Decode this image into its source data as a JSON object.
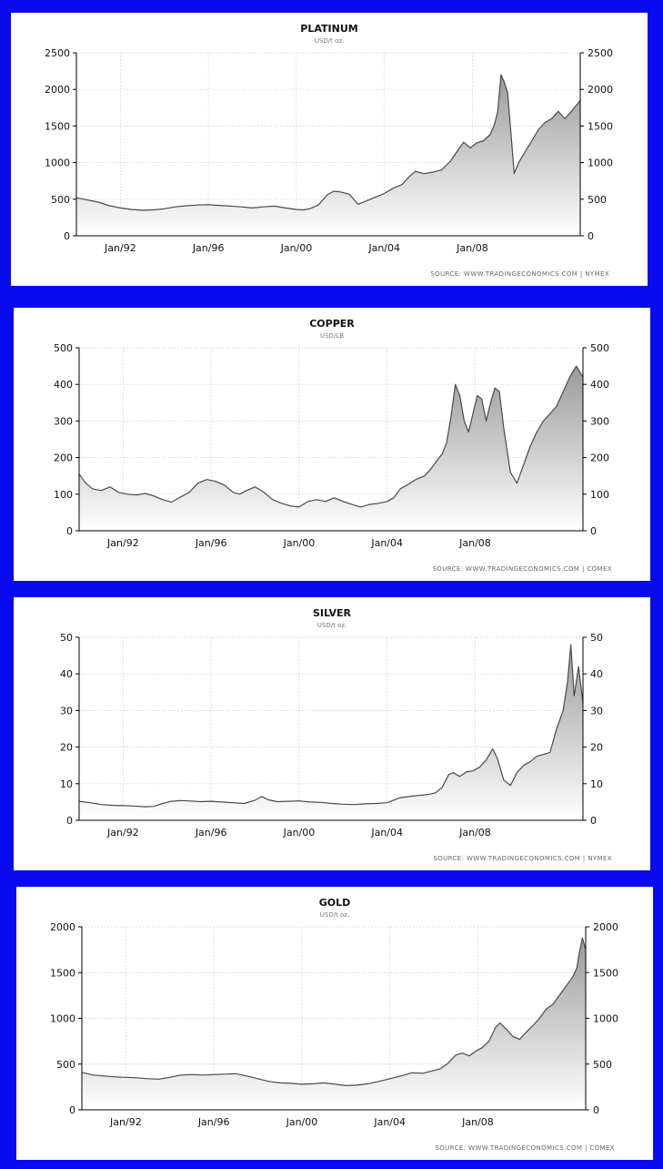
{
  "page": {
    "background": "#0a0af0"
  },
  "chart_data": [
    {
      "type": "area",
      "title": "PLATINUM",
      "subtitle": "USD/t oz.",
      "source": "SOURCE:  WWW.TRADINGECONOMICS.COM   |   NYMEX",
      "ylim": [
        0,
        2500
      ],
      "yticks": [
        0,
        500,
        1000,
        1500,
        2000,
        2500
      ],
      "xlim": [
        1989.0,
        2011.9
      ],
      "xticks": [
        {
          "value": 1991,
          "label": "Jan/92"
        },
        {
          "value": 1995,
          "label": "Jan/96"
        },
        {
          "value": 1999,
          "label": "Jan/00"
        },
        {
          "value": 2003,
          "label": "Jan/04"
        },
        {
          "value": 2007,
          "label": "Jan/08"
        }
      ],
      "grid": true,
      "series": [
        {
          "color": "#4a4a4a",
          "x": [
            1989.0,
            1989.5,
            1990.0,
            1990.5,
            1991.0,
            1991.5,
            1992.0,
            1992.5,
            1993.0,
            1993.5,
            1994.0,
            1994.5,
            1995.0,
            1995.5,
            1996.0,
            1996.5,
            1997.0,
            1997.5,
            1998.0,
            1998.5,
            1999.0,
            1999.3,
            1999.6,
            2000.0,
            2000.4,
            2000.7,
            2001.0,
            2001.4,
            2001.8,
            2002.2,
            2002.6,
            2003.0,
            2003.4,
            2003.8,
            2004.1,
            2004.4,
            2004.8,
            2005.2,
            2005.6,
            2006.0,
            2006.3,
            2006.6,
            2006.9,
            2007.2,
            2007.5,
            2007.8,
            2008.0,
            2008.15,
            2008.3,
            2008.45,
            2008.6,
            2008.75,
            2008.9,
            2009.1,
            2009.4,
            2009.7,
            2010.0,
            2010.3,
            2010.6,
            2010.9,
            2011.2,
            2011.5,
            2011.9
          ],
          "y": [
            520,
            490,
            460,
            410,
            380,
            360,
            350,
            355,
            370,
            395,
            410,
            420,
            425,
            415,
            405,
            395,
            380,
            395,
            405,
            380,
            360,
            355,
            370,
            420,
            560,
            610,
            600,
            570,
            430,
            480,
            530,
            580,
            650,
            700,
            800,
            880,
            850,
            870,
            900,
            1020,
            1150,
            1280,
            1200,
            1270,
            1300,
            1380,
            1520,
            1700,
            2200,
            2100,
            1950,
            1400,
            850,
            1000,
            1150,
            1300,
            1450,
            1550,
            1600,
            1700,
            1600,
            1700,
            1850
          ]
        }
      ]
    },
    {
      "type": "area",
      "title": "COPPER",
      "subtitle": "USD/LB",
      "source": "SOURCE:  WWW.TRADINGECONOMICS.COM   |   COMEX",
      "ylim": [
        0,
        500
      ],
      "yticks": [
        0,
        100,
        200,
        300,
        400,
        500
      ],
      "xlim": [
        1989.0,
        2011.9
      ],
      "xticks": [
        {
          "value": 1991,
          "label": "Jan/92"
        },
        {
          "value": 1995,
          "label": "Jan/96"
        },
        {
          "value": 1999,
          "label": "Jan/00"
        },
        {
          "value": 2003,
          "label": "Jan/04"
        },
        {
          "value": 2007,
          "label": "Jan/08"
        }
      ],
      "grid": true,
      "series": [
        {
          "color": "#4a4a4a",
          "x": [
            1989.0,
            1989.3,
            1989.6,
            1990.0,
            1990.4,
            1990.8,
            1991.2,
            1991.6,
            1992.0,
            1992.4,
            1992.8,
            1993.2,
            1993.6,
            1994.0,
            1994.4,
            1994.8,
            1995.2,
            1995.6,
            1996.0,
            1996.3,
            1996.6,
            1997.0,
            1997.4,
            1997.8,
            1998.2,
            1998.6,
            1999.0,
            1999.4,
            1999.8,
            2000.2,
            2000.6,
            2001.0,
            2001.4,
            2001.8,
            2002.2,
            2002.6,
            2003.0,
            2003.3,
            2003.6,
            2003.9,
            2004.3,
            2004.7,
            2005.0,
            2005.3,
            2005.5,
            2005.7,
            2005.9,
            2006.1,
            2006.3,
            2006.5,
            2006.7,
            2006.9,
            2007.1,
            2007.3,
            2007.5,
            2007.7,
            2007.9,
            2008.1,
            2008.3,
            2008.6,
            2008.9,
            2009.2,
            2009.5,
            2009.8,
            2010.1,
            2010.4,
            2010.7,
            2011.0,
            2011.3,
            2011.6,
            2011.9
          ],
          "y": [
            155,
            130,
            115,
            110,
            120,
            105,
            100,
            98,
            102,
            95,
            85,
            78,
            92,
            105,
            130,
            140,
            135,
            125,
            105,
            100,
            110,
            120,
            105,
            85,
            75,
            68,
            65,
            80,
            85,
            80,
            90,
            80,
            72,
            65,
            72,
            75,
            80,
            90,
            115,
            125,
            140,
            150,
            170,
            195,
            210,
            240,
            310,
            400,
            370,
            300,
            270,
            320,
            370,
            360,
            300,
            350,
            390,
            380,
            280,
            160,
            130,
            180,
            230,
            270,
            300,
            320,
            340,
            380,
            420,
            450,
            420
          ]
        }
      ]
    },
    {
      "type": "area",
      "title": "SILVER",
      "subtitle": "USD/t oz.",
      "source": "SOURCE:  WWW.TRADINGECONOMICS.COM   |   NYMEX",
      "ylim": [
        0,
        50
      ],
      "yticks": [
        0,
        10,
        20,
        30,
        40,
        50
      ],
      "xlim": [
        1989.0,
        2011.9
      ],
      "xticks": [
        {
          "value": 1991,
          "label": "Jan/92"
        },
        {
          "value": 1995,
          "label": "Jan/96"
        },
        {
          "value": 1999,
          "label": "Jan/00"
        },
        {
          "value": 2003,
          "label": "Jan/04"
        },
        {
          "value": 2007,
          "label": "Jan/08"
        }
      ],
      "grid": true,
      "series": [
        {
          "color": "#4a4a4a",
          "x": [
            1989.0,
            1989.5,
            1990.0,
            1990.5,
            1991.0,
            1991.5,
            1992.0,
            1992.4,
            1992.8,
            1993.2,
            1993.6,
            1994.0,
            1994.5,
            1995.0,
            1995.5,
            1996.0,
            1996.5,
            1997.0,
            1997.3,
            1997.6,
            1998.0,
            1998.5,
            1999.0,
            1999.5,
            2000.0,
            2000.5,
            2001.0,
            2001.5,
            2002.0,
            2002.5,
            2003.0,
            2003.3,
            2003.6,
            2004.0,
            2004.4,
            2004.8,
            2005.2,
            2005.5,
            2005.8,
            2006.0,
            2006.3,
            2006.6,
            2006.9,
            2007.2,
            2007.5,
            2007.8,
            2008.0,
            2008.3,
            2008.6,
            2008.9,
            2009.2,
            2009.5,
            2009.8,
            2010.1,
            2010.4,
            2010.7,
            2011.0,
            2011.2,
            2011.35,
            2011.5,
            2011.7,
            2011.9
          ],
          "y": [
            5.2,
            4.8,
            4.3,
            4.1,
            4.0,
            3.9,
            3.7,
            3.8,
            4.6,
            5.2,
            5.4,
            5.3,
            5.1,
            5.2,
            5.0,
            4.8,
            4.6,
            5.5,
            6.5,
            5.6,
            5.1,
            5.2,
            5.3,
            5.0,
            4.9,
            4.6,
            4.4,
            4.3,
            4.5,
            4.6,
            4.8,
            5.5,
            6.2,
            6.5,
            6.8,
            7.0,
            7.5,
            9.0,
            12.5,
            13.0,
            12.0,
            13.2,
            13.5,
            14.5,
            16.5,
            19.5,
            17.0,
            11.0,
            9.5,
            13.0,
            15.0,
            16.0,
            17.5,
            18.0,
            18.5,
            25.0,
            30.0,
            38.0,
            48.0,
            34.0,
            42.0,
            32.0
          ]
        }
      ]
    },
    {
      "type": "area",
      "title": "GOLD",
      "subtitle": "USD/t oz.",
      "source": "SOURCE:  WWW.TRADINGECONOMICS.COM   |   COMEX",
      "ylim": [
        0,
        2000
      ],
      "yticks": [
        0,
        500,
        1000,
        1500,
        2000
      ],
      "xlim": [
        1989.0,
        2011.9
      ],
      "xticks": [
        {
          "value": 1991,
          "label": "Jan/92"
        },
        {
          "value": 1995,
          "label": "Jan/96"
        },
        {
          "value": 1999,
          "label": "Jan/00"
        },
        {
          "value": 2003,
          "label": "Jan/04"
        },
        {
          "value": 2007,
          "label": "Jan/08"
        }
      ],
      "grid": true,
      "series": [
        {
          "color": "#4a4a4a",
          "x": [
            1989.0,
            1989.5,
            1990.0,
            1990.5,
            1991.0,
            1991.5,
            1992.0,
            1992.5,
            1993.0,
            1993.5,
            1994.0,
            1994.5,
            1995.0,
            1995.5,
            1996.0,
            1996.5,
            1997.0,
            1997.5,
            1998.0,
            1998.5,
            1999.0,
            1999.5,
            2000.0,
            2000.5,
            2001.0,
            2001.5,
            2002.0,
            2002.5,
            2003.0,
            2003.5,
            2004.0,
            2004.5,
            2005.0,
            2005.3,
            2005.6,
            2006.0,
            2006.3,
            2006.6,
            2006.9,
            2007.2,
            2007.5,
            2007.8,
            2008.0,
            2008.3,
            2008.6,
            2008.9,
            2009.2,
            2009.5,
            2009.8,
            2010.1,
            2010.4,
            2010.7,
            2011.0,
            2011.3,
            2011.5,
            2011.6,
            2011.75,
            2011.9
          ],
          "y": [
            410,
            380,
            370,
            360,
            355,
            350,
            340,
            335,
            355,
            380,
            385,
            380,
            385,
            390,
            395,
            370,
            340,
            310,
            295,
            290,
            280,
            285,
            295,
            280,
            265,
            270,
            285,
            310,
            340,
            370,
            405,
            400,
            430,
            450,
            500,
            600,
            620,
            590,
            640,
            680,
            750,
            900,
            950,
            880,
            800,
            770,
            850,
            920,
            1000,
            1100,
            1150,
            1250,
            1350,
            1450,
            1550,
            1700,
            1880,
            1750
          ]
        }
      ]
    }
  ]
}
